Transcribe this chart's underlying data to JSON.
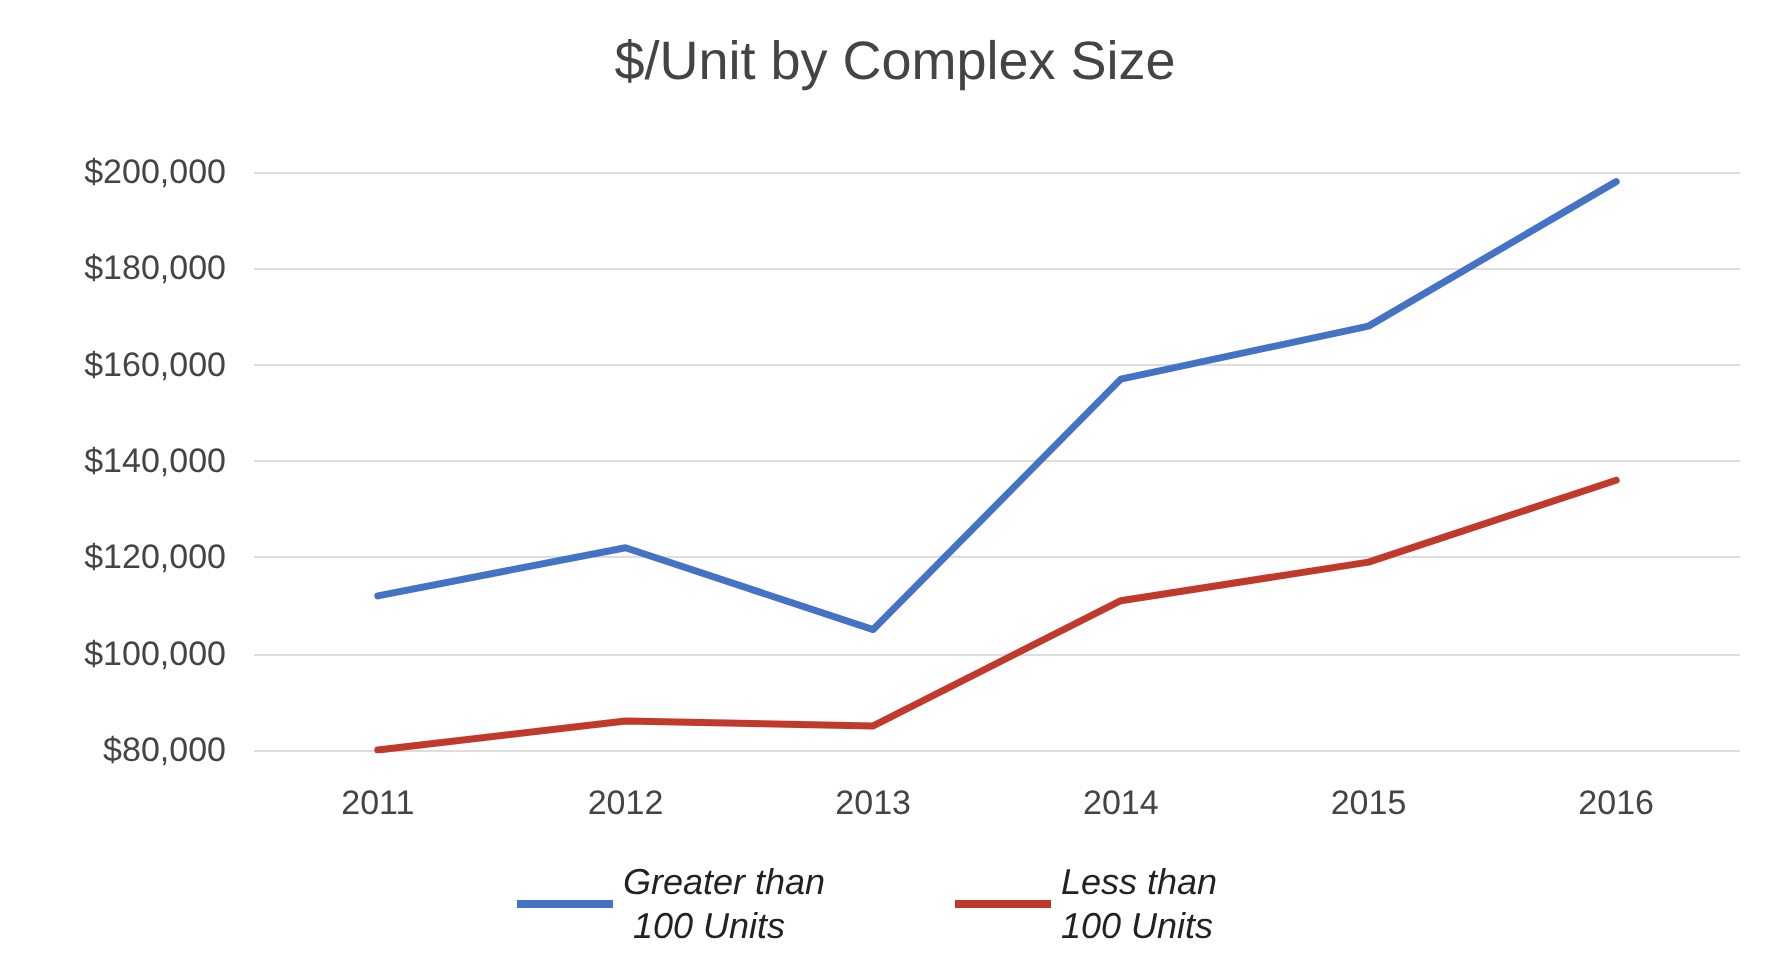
{
  "chart_data": {
    "type": "line",
    "title": "$/Unit by Complex Size",
    "categories": [
      "2011",
      "2012",
      "2013",
      "2014",
      "2015",
      "2016"
    ],
    "series": [
      {
        "name": "Greater than 100 Units",
        "color": "#4472c4",
        "values": [
          112000,
          122000,
          105000,
          157000,
          168000,
          198000
        ]
      },
      {
        "name": "Less than 100 Units",
        "color": "#c0392b",
        "values": [
          80000,
          86000,
          85000,
          111000,
          119000,
          136000
        ]
      }
    ],
    "ylim": [
      80000,
      200000
    ],
    "yticks": [
      {
        "value": 80000,
        "label": "$80,000"
      },
      {
        "value": 100000,
        "label": "$100,000"
      },
      {
        "value": 120000,
        "label": "$120,000"
      },
      {
        "value": 140000,
        "label": "$140,000"
      },
      {
        "value": 160000,
        "label": "$160,000"
      },
      {
        "value": 180000,
        "label": "$180,000"
      },
      {
        "value": 200000,
        "label": "$200,000"
      }
    ],
    "grid": "y",
    "legend": "bottom",
    "marker": "none",
    "line_style": "solid"
  }
}
